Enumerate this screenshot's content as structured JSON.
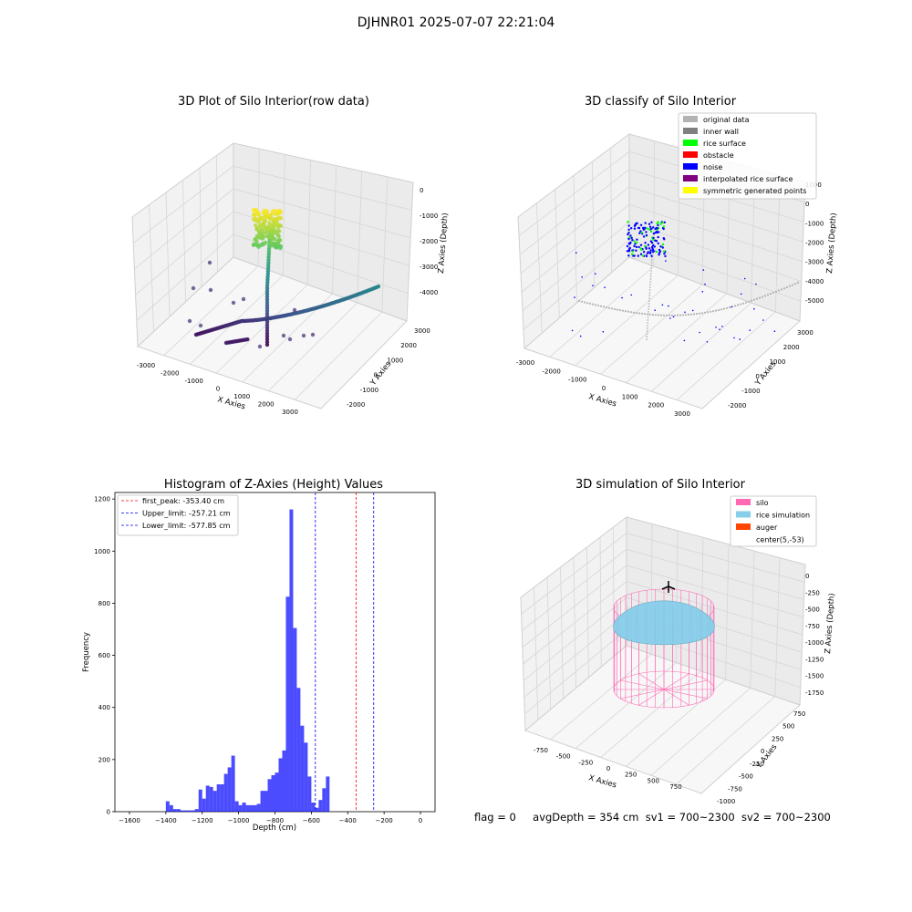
{
  "figure": {
    "suptitle": "DJHNR01 2025-07-07 22:21:04",
    "footer": {
      "flag": "flag = 0",
      "avgDepth": "avgDepth = 354 cm",
      "sv1": "sv1 = 700~2300",
      "sv2": "sv2 = 700~2300"
    }
  },
  "panels": {
    "raw": {
      "title": "3D Plot of Silo Interior(row data)",
      "xlabel": "X Axies",
      "ylabel": "Y Axies",
      "zlabel": "Z Axies (Depth)",
      "xticks": [
        "-3000",
        "-2000",
        "-1000",
        "0",
        "1000",
        "2000",
        "3000"
      ],
      "yticks": [
        "-2000",
        "-1000",
        "0",
        "1000",
        "2000",
        "3000"
      ],
      "zticks": [
        "0",
        "-1000",
        "-2000",
        "-3000",
        "-4000"
      ]
    },
    "classify": {
      "title": "3D classify of Silo Interior",
      "xlabel": "X Axies",
      "ylabel": "Y Axies",
      "zlabel": "Z Axies (Depth)",
      "xticks": [
        "-3000",
        "-2000",
        "-1000",
        "0",
        "1000",
        "2000",
        "3000"
      ],
      "yticks": [
        "-2000",
        "-1000",
        "0",
        "1000",
        "2000",
        "3000"
      ],
      "zticks": [
        "1000",
        "0",
        "-1000",
        "-2000",
        "-3000",
        "-4000",
        "-5000"
      ],
      "legend": [
        {
          "label": "original data",
          "color": "#b3b3b3"
        },
        {
          "label": "inner wall",
          "color": "#808080"
        },
        {
          "label": "rice surface",
          "color": "#00ff00"
        },
        {
          "label": "obstacle",
          "color": "#ff0000"
        },
        {
          "label": "noise",
          "color": "#0000ff"
        },
        {
          "label": "interpolated rice surface",
          "color": "#800080"
        },
        {
          "label": "symmetric generated points",
          "color": "#ffff00"
        }
      ]
    },
    "simulation": {
      "title": "3D simulation of Silo Interior",
      "xlabel": "X Axies",
      "ylabel": "Y Axies",
      "zlabel": "Z Axies (Depth)",
      "xticks": [
        "-750",
        "-500",
        "-250",
        "0",
        "250",
        "500",
        "750"
      ],
      "yticks": [
        "-1000",
        "-750",
        "-500",
        "-250",
        "0",
        "250",
        "500",
        "750"
      ],
      "zticks": [
        "0",
        "-250",
        "-500",
        "-750",
        "-1000",
        "-1250",
        "-1500",
        "-1750"
      ],
      "legend": [
        {
          "label": "silo",
          "color": "#ff69b4"
        },
        {
          "label": "rice simulation",
          "color": "#87ceeb"
        },
        {
          "label": "auger",
          "color": "#ff4500"
        },
        {
          "label": "center(5,-53)",
          "color": ""
        }
      ]
    }
  },
  "chart_data": [
    {
      "type": "scatter",
      "title": "3D Plot of Silo Interior(row data)",
      "xlabel": "X Axies",
      "ylabel": "Y Axies",
      "zlabel": "Z Axies (Depth)",
      "xlim": [
        -3500,
        3500
      ],
      "ylim": [
        -2500,
        3500
      ],
      "zlim": [
        -4800,
        400
      ],
      "colormap": "viridis",
      "grid": true
    },
    {
      "type": "scatter",
      "title": "3D classify of Silo Interior",
      "xlabel": "X Axies",
      "ylabel": "Y Axies",
      "zlabel": "Z Axies (Depth)",
      "xlim": [
        -3500,
        3500
      ],
      "ylim": [
        -2500,
        3500
      ],
      "zlim": [
        -5500,
        1200
      ],
      "legend_position": "top-right",
      "grid": true
    },
    {
      "type": "bar",
      "title": "Histogram of Z-Axies (Height) Values",
      "xlabel": "Depth (cm)",
      "ylabel": "Frequency",
      "xlim": [
        -1680,
        80
      ],
      "ylim": [
        0,
        1225
      ],
      "xticks": [
        -1600,
        -1400,
        -1200,
        -1000,
        -800,
        -600,
        -400,
        -200,
        0
      ],
      "yticks": [
        0,
        200,
        400,
        600,
        800,
        1000,
        1200
      ],
      "bin_width": 20,
      "bar_color": "#0000ff",
      "bins": [
        [
          -1400,
          40
        ],
        [
          -1380,
          25
        ],
        [
          -1360,
          10
        ],
        [
          -1340,
          10
        ],
        [
          -1320,
          5
        ],
        [
          -1300,
          5
        ],
        [
          -1280,
          5
        ],
        [
          -1260,
          5
        ],
        [
          -1240,
          10
        ],
        [
          -1220,
          85
        ],
        [
          -1200,
          50
        ],
        [
          -1180,
          100
        ],
        [
          -1160,
          95
        ],
        [
          -1140,
          80
        ],
        [
          -1120,
          105
        ],
        [
          -1100,
          105
        ],
        [
          -1080,
          145
        ],
        [
          -1060,
          170
        ],
        [
          -1040,
          215
        ],
        [
          -1020,
          40
        ],
        [
          -1000,
          25
        ],
        [
          -980,
          35
        ],
        [
          -960,
          25
        ],
        [
          -940,
          25
        ],
        [
          -920,
          25
        ],
        [
          -900,
          30
        ],
        [
          -880,
          80
        ],
        [
          -860,
          80
        ],
        [
          -840,
          125
        ],
        [
          -820,
          140
        ],
        [
          -800,
          150
        ],
        [
          -780,
          205
        ],
        [
          -760,
          235
        ],
        [
          -740,
          825
        ],
        [
          -720,
          1160
        ],
        [
          -700,
          705
        ],
        [
          -680,
          475
        ],
        [
          -660,
          330
        ],
        [
          -640,
          265
        ],
        [
          -620,
          135
        ],
        [
          -600,
          35
        ],
        [
          -580,
          15
        ],
        [
          -560,
          45
        ],
        [
          -540,
          90
        ],
        [
          -520,
          135
        ]
      ],
      "vlines": [
        {
          "label": "first_peak: -353.40 cm",
          "x": -353.4,
          "color": "#ff0000"
        },
        {
          "label": "Upper_limit: -257.21 cm",
          "x": -257.21,
          "color": "#0000ff"
        },
        {
          "label": "Lower_limit: -577.85 cm",
          "x": -577.85,
          "color": "#0000ff"
        }
      ],
      "legend_position": "top-left"
    },
    {
      "type": "scatter",
      "title": "3D simulation of Silo Interior",
      "xlabel": "X Axies",
      "ylabel": "Y Axies",
      "zlabel": "Z Axies (Depth)",
      "xlim": [
        -900,
        900
      ],
      "ylim": [
        -1000,
        900
      ],
      "zlim": [
        -1800,
        150
      ],
      "legend_position": "top-right",
      "grid": true
    }
  ]
}
